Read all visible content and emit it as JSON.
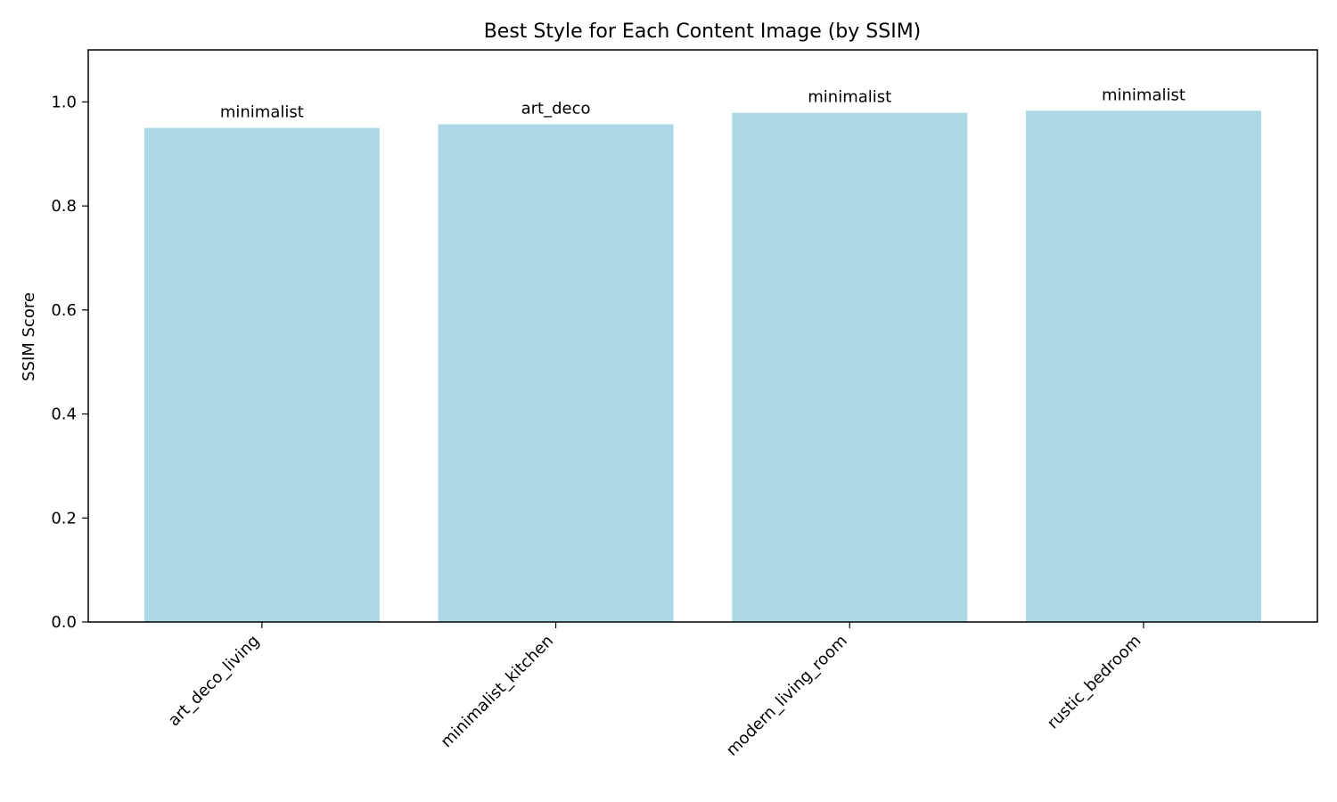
{
  "chart_data": {
    "type": "bar",
    "title": "Best Style for Each Content Image (by SSIM)",
    "xlabel": "",
    "ylabel": "SSIM Score",
    "categories": [
      "art_deco_living",
      "minimalist_kitchen",
      "modern_living_room",
      "rustic_bedroom"
    ],
    "values": [
      0.95,
      0.957,
      0.979,
      0.983
    ],
    "bar_labels": [
      "minimalist",
      "art_deco",
      "minimalist",
      "minimalist"
    ],
    "ylim": [
      0,
      1.1
    ],
    "yticks": [
      0.0,
      0.2,
      0.4,
      0.6,
      0.8,
      1.0
    ],
    "ytick_labels": [
      "0.0",
      "0.2",
      "0.4",
      "0.6",
      "0.8",
      "1.0"
    ],
    "grid": false,
    "colors": {
      "bar": "#add8e6",
      "axis": "#000000"
    }
  }
}
